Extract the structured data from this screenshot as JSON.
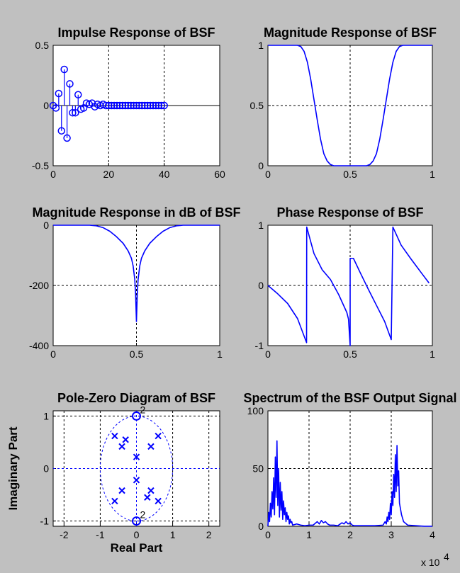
{
  "figure": {
    "background": "#c0c0c0",
    "line_color": "#0000ff"
  },
  "chart_data": [
    {
      "type": "stem",
      "title": "Impulse Response of BSF",
      "xlim": [
        0,
        60
      ],
      "ylim": [
        -0.5,
        0.5
      ],
      "xticks": [
        0,
        20,
        40,
        60
      ],
      "yticks": [
        -0.5,
        0,
        0.5
      ],
      "xtick_labels": [
        "0",
        "20",
        "40",
        "60"
      ],
      "ytick_labels": [
        "-0.5",
        "0",
        "0.5"
      ],
      "grid": true,
      "series": [
        {
          "x": [
            0,
            1,
            2,
            3,
            4,
            5,
            6,
            7,
            8,
            9,
            10,
            11,
            12,
            13,
            14,
            15,
            16,
            17,
            18,
            19,
            20,
            21,
            22,
            23,
            24,
            25,
            26,
            27,
            28,
            29,
            30,
            31,
            32,
            33,
            34,
            35,
            36,
            37,
            38,
            39,
            40
          ],
          "values": [
            0,
            -0.02,
            0.1,
            -0.21,
            0.3,
            -0.27,
            0.18,
            -0.06,
            -0.06,
            0.09,
            -0.03,
            -0.02,
            0.02,
            0.01,
            0.02,
            -0.01,
            0.01,
            0,
            0.01,
            0,
            0,
            0,
            0,
            0,
            0,
            0,
            0,
            0,
            0,
            0,
            0,
            0,
            0,
            0,
            0,
            0,
            0,
            0,
            0,
            0,
            0
          ]
        }
      ]
    },
    {
      "type": "line",
      "title": "Magnitude Response of BSF",
      "xlim": [
        0,
        1
      ],
      "ylim": [
        0,
        1
      ],
      "xticks": [
        0,
        0.5,
        1
      ],
      "yticks": [
        0,
        0.5,
        1
      ],
      "xtick_labels": [
        "0",
        "0.5",
        "1"
      ],
      "ytick_labels": [
        "0",
        "0.5",
        "1"
      ],
      "grid": true,
      "series": [
        {
          "x": [
            0,
            0.18,
            0.2,
            0.22,
            0.24,
            0.26,
            0.28,
            0.3,
            0.32,
            0.34,
            0.36,
            0.38,
            0.4,
            0.45,
            0.5,
            0.55,
            0.6,
            0.62,
            0.64,
            0.66,
            0.68,
            0.7,
            0.72,
            0.74,
            0.76,
            0.78,
            0.8,
            0.82,
            1
          ],
          "values": [
            1,
            1,
            0.99,
            0.95,
            0.86,
            0.72,
            0.55,
            0.38,
            0.22,
            0.1,
            0.04,
            0.01,
            0,
            0,
            0,
            0,
            0,
            0.01,
            0.04,
            0.1,
            0.22,
            0.38,
            0.55,
            0.72,
            0.86,
            0.95,
            0.99,
            1,
            1
          ]
        }
      ]
    },
    {
      "type": "line",
      "title": "Magnitude Response in dB of BSF",
      "xlim": [
        0,
        1
      ],
      "ylim": [
        -400,
        0
      ],
      "xticks": [
        0,
        0.5,
        1
      ],
      "yticks": [
        -400,
        -200,
        0
      ],
      "xtick_labels": [
        "0",
        "0.5",
        "1"
      ],
      "ytick_labels": [
        "-400",
        "-200",
        "0"
      ],
      "grid": true,
      "series": [
        {
          "x": [
            0,
            0.22,
            0.26,
            0.3,
            0.34,
            0.38,
            0.42,
            0.45,
            0.47,
            0.48,
            0.49,
            0.495,
            0.5,
            0.505,
            0.51,
            0.52,
            0.53,
            0.55,
            0.58,
            0.62,
            0.66,
            0.7,
            0.74,
            0.78,
            1
          ],
          "values": [
            0,
            0,
            -2,
            -8,
            -20,
            -38,
            -60,
            -85,
            -110,
            -135,
            -180,
            -230,
            -320,
            -230,
            -180,
            -135,
            -110,
            -85,
            -60,
            -38,
            -20,
            -8,
            -2,
            0,
            0
          ]
        }
      ]
    },
    {
      "type": "line",
      "title": "Phase Response of BSF",
      "xlim": [
        0,
        1
      ],
      "ylim": [
        -1,
        1
      ],
      "xticks": [
        0,
        0.5,
        1
      ],
      "yticks": [
        -1,
        0,
        1
      ],
      "xtick_labels": [
        "0",
        "0.5",
        "1"
      ],
      "ytick_labels": [
        "-1",
        "0",
        "1"
      ],
      "grid": true,
      "series": [
        {
          "x": [
            0,
            0.06,
            0.12,
            0.18,
            0.235,
            0.236,
            0.28,
            0.33,
            0.38,
            0.43,
            0.48,
            0.49,
            0.5,
            0.5,
            0.52,
            0.56,
            0.61,
            0.66,
            0.71,
            0.75,
            0.76,
            0.81,
            0.87,
            0.93,
            0.98
          ],
          "values": [
            0,
            -0.14,
            -0.3,
            -0.55,
            -0.95,
            0.97,
            0.53,
            0.26,
            0.1,
            -0.15,
            -0.45,
            -0.56,
            -1,
            0.45,
            0.45,
            0.22,
            -0.06,
            -0.33,
            -0.6,
            -0.9,
            0.97,
            0.67,
            0.44,
            0.22,
            0.04
          ]
        }
      ]
    },
    {
      "type": "scatter",
      "title": "Pole-Zero Diagram of BSF",
      "xlabel": "Real Part",
      "ylabel": "Imaginary Part",
      "xlim": [
        -2.3,
        2.3
      ],
      "ylim": [
        -1.1,
        1.1
      ],
      "xticks": [
        -2,
        -1,
        0,
        1,
        2
      ],
      "yticks": [
        -1,
        0,
        1
      ],
      "xtick_labels": [
        "-2",
        "-1",
        "0",
        "1",
        "2"
      ],
      "ytick_labels": [
        "-1",
        "0",
        "1"
      ],
      "grid": true,
      "unit_circle": true,
      "zeros": [
        {
          "x": 0,
          "y": 1,
          "label": "2"
        },
        {
          "x": 0,
          "y": -1,
          "label": "2"
        }
      ],
      "poles": [
        {
          "x": -0.3,
          "y": 0.55
        },
        {
          "x": -0.6,
          "y": 0.62
        },
        {
          "x": 0.6,
          "y": 0.62
        },
        {
          "x": 0.4,
          "y": 0.42
        },
        {
          "x": -0.4,
          "y": 0.42
        },
        {
          "x": 0,
          "y": 0.22
        },
        {
          "x": 0,
          "y": -0.22
        },
        {
          "x": -0.4,
          "y": -0.42
        },
        {
          "x": 0.4,
          "y": -0.42
        },
        {
          "x": -0.6,
          "y": -0.62
        },
        {
          "x": 0.6,
          "y": -0.62
        },
        {
          "x": 0.3,
          "y": -0.55
        }
      ]
    },
    {
      "type": "line",
      "title": "Spectrum of the BSF Output Signal",
      "xlim": [
        0,
        4
      ],
      "ylim": [
        0,
        100
      ],
      "xticks": [
        0,
        1,
        2,
        3,
        4
      ],
      "yticks": [
        0,
        50,
        100
      ],
      "xtick_labels": [
        "0",
        "1",
        "2",
        "3",
        "4"
      ],
      "ytick_labels": [
        "0",
        "50",
        "100"
      ],
      "x_multiplier": "x 10",
      "x_multiplier_exp": "4",
      "grid": true,
      "series": [
        {
          "x": [
            0,
            0.02,
            0.04,
            0.06,
            0.08,
            0.1,
            0.12,
            0.14,
            0.16,
            0.18,
            0.2,
            0.22,
            0.24,
            0.26,
            0.28,
            0.3,
            0.32,
            0.34,
            0.36,
            0.38,
            0.4,
            0.42,
            0.44,
            0.46,
            0.48,
            0.5,
            0.52,
            0.54,
            0.56,
            0.58,
            0.6,
            0.7,
            0.8,
            0.9,
            1.0,
            1.1,
            1.2,
            1.25,
            1.3,
            1.35,
            1.4,
            1.45,
            1.5,
            1.6,
            1.7,
            1.8,
            1.85,
            1.9,
            1.95,
            2.0,
            2.05,
            2.1,
            2.2,
            2.4,
            2.6,
            2.8,
            2.85,
            2.88,
            2.9,
            2.92,
            2.94,
            2.96,
            2.98,
            3.0,
            3.02,
            3.04,
            3.06,
            3.08,
            3.1,
            3.12,
            3.14,
            3.16,
            3.18,
            3.2,
            3.25,
            3.3,
            3.4,
            3.6,
            3.8,
            4.0
          ],
          "values": [
            0,
            12,
            4,
            20,
            8,
            30,
            15,
            42,
            10,
            60,
            25,
            74,
            18,
            50,
            8,
            38,
            14,
            30,
            6,
            22,
            10,
            16,
            4,
            12,
            6,
            9,
            2,
            6,
            3,
            4,
            1,
            2,
            1,
            0.5,
            1,
            1,
            4,
            2,
            5,
            3,
            4,
            2,
            1,
            1,
            0.5,
            3,
            2,
            4,
            2,
            3,
            1,
            0.5,
            0.5,
            0.5,
            0.5,
            1,
            4,
            2,
            8,
            4,
            12,
            6,
            20,
            10,
            30,
            18,
            45,
            25,
            62,
            30,
            70,
            35,
            48,
            20,
            10,
            4,
            1,
            0.5,
            0,
            0
          ]
        }
      ]
    }
  ]
}
